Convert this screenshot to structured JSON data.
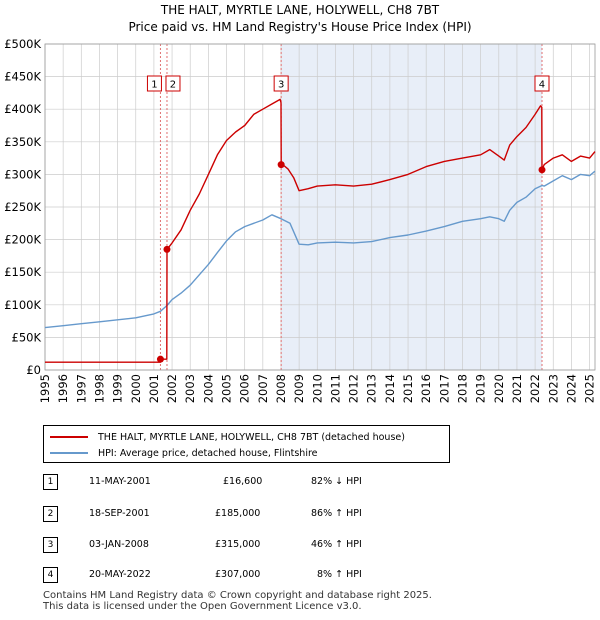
{
  "title": "THE HALT, MYRTLE LANE, HOLYWELL, CH8 7BT",
  "subtitle": "Price paid vs. HM Land Registry's House Price Index (HPI)",
  "colors": {
    "property": "#cc0000",
    "hpi": "#6699cc",
    "shade": "#e8eef8",
    "grid": "#cccccc",
    "vline": "#e07070"
  },
  "chart_data": {
    "type": "line",
    "title": "THE HALT, MYRTLE LANE, HOLYWELL, CH8 7BT",
    "subtitle": "Price paid vs. HM Land Registry's House Price Index (HPI)",
    "xlim": [
      1995,
      2025.3
    ],
    "ylim": [
      0,
      500000
    ],
    "x_ticks": [
      1995,
      1996,
      1997,
      1998,
      1999,
      2000,
      2001,
      2002,
      2003,
      2004,
      2005,
      2006,
      2007,
      2008,
      2009,
      2010,
      2011,
      2012,
      2013,
      2014,
      2015,
      2016,
      2017,
      2018,
      2019,
      2020,
      2021,
      2022,
      2023,
      2024,
      2025
    ],
    "y_ticks": [
      0,
      50000,
      100000,
      150000,
      200000,
      250000,
      300000,
      350000,
      400000,
      450000,
      500000
    ],
    "y_tick_labels": [
      "£0",
      "£50K",
      "£100K",
      "£150K",
      "£200K",
      "£250K",
      "£300K",
      "£350K",
      "£400K",
      "£450K",
      "£500K"
    ],
    "grid": true,
    "shaded_range": [
      2008.01,
      2022.38
    ],
    "series": [
      {
        "name": "THE HALT, MYRTLE LANE, HOLYWELL, CH8 7BT (detached house)",
        "x": [
          1995.0,
          2001.36,
          2001.37,
          2001.71,
          2001.72,
          2002.0,
          2002.5,
          2003.0,
          2003.5,
          2004.0,
          2004.5,
          2005.0,
          2005.5,
          2006.0,
          2006.5,
          2007.0,
          2007.5,
          2007.95,
          2008.0,
          2008.01,
          2008.1,
          2008.4,
          2008.7,
          2009.0,
          2009.5,
          2010.0,
          2011.0,
          2012.0,
          2013.0,
          2014.0,
          2015.0,
          2016.0,
          2017.0,
          2018.0,
          2019.0,
          2019.5,
          2020.0,
          2020.3,
          2020.6,
          2021.0,
          2021.5,
          2022.0,
          2022.3,
          2022.37,
          2022.38,
          2022.5,
          2023.0,
          2023.5,
          2024.0,
          2024.5,
          2025.0,
          2025.3
        ],
        "values": [
          12000,
          12000,
          16600,
          16600,
          185000,
          195000,
          215000,
          245000,
          270000,
          300000,
          330000,
          352000,
          365000,
          375000,
          392000,
          400000,
          408000,
          415000,
          410000,
          315000,
          315000,
          308000,
          295000,
          275000,
          278000,
          282000,
          284000,
          282000,
          285000,
          292000,
          300000,
          312000,
          320000,
          325000,
          330000,
          338000,
          328000,
          322000,
          345000,
          358000,
          372000,
          392000,
          405000,
          403000,
          307000,
          315000,
          325000,
          330000,
          320000,
          328000,
          325000,
          335000
        ]
      },
      {
        "name": "HPI: Average price, detached house, Flintshire",
        "x": [
          1995.0,
          1996.0,
          1997.0,
          1998.0,
          1999.0,
          2000.0,
          2001.0,
          2001.36,
          2001.72,
          2002.0,
          2002.5,
          2003.0,
          2003.5,
          2004.0,
          2004.5,
          2005.0,
          2005.5,
          2006.0,
          2006.5,
          2007.0,
          2007.5,
          2008.0,
          2008.5,
          2009.0,
          2009.5,
          2010.0,
          2011.0,
          2012.0,
          2013.0,
          2014.0,
          2015.0,
          2016.0,
          2017.0,
          2018.0,
          2019.0,
          2019.5,
          2020.0,
          2020.3,
          2020.6,
          2021.0,
          2021.5,
          2022.0,
          2022.38,
          2022.5,
          2023.0,
          2023.5,
          2024.0,
          2024.5,
          2025.0,
          2025.3
        ],
        "values": [
          65000,
          68000,
          71000,
          74000,
          77000,
          80000,
          86000,
          90000,
          99000,
          108000,
          118000,
          130000,
          146000,
          162000,
          180000,
          198000,
          212000,
          220000,
          225000,
          230000,
          238000,
          232000,
          225000,
          193000,
          192000,
          195000,
          196000,
          195000,
          197000,
          203000,
          207000,
          213000,
          220000,
          228000,
          232000,
          235000,
          232000,
          228000,
          245000,
          257000,
          265000,
          278000,
          283000,
          282000,
          290000,
          298000,
          292000,
          300000,
          298000,
          305000
        ]
      }
    ],
    "sales": [
      {
        "label": "1",
        "x": 2001.36,
        "price": 16600
      },
      {
        "label": "2",
        "x": 2001.72,
        "price": 185000
      },
      {
        "label": "3",
        "x": 2008.01,
        "price": 315000
      },
      {
        "label": "4",
        "x": 2022.38,
        "price": 307000
      }
    ]
  },
  "legend": {
    "property": "THE HALT, MYRTLE LANE, HOLYWELL, CH8 7BT (detached house)",
    "hpi": "HPI: Average price, detached house, Flintshire"
  },
  "sales_table": [
    {
      "num": "1",
      "date": "11-MAY-2001",
      "price": "£16,600",
      "hpi": "82% ↓ HPI"
    },
    {
      "num": "2",
      "date": "18-SEP-2001",
      "price": "£185,000",
      "hpi": "86% ↑ HPI"
    },
    {
      "num": "3",
      "date": "03-JAN-2008",
      "price": "£315,000",
      "hpi": "46% ↑ HPI"
    },
    {
      "num": "4",
      "date": "20-MAY-2022",
      "price": "£307,000",
      "hpi": "8% ↑ HPI"
    }
  ],
  "footer": {
    "line1": "Contains HM Land Registry data © Crown copyright and database right 2025.",
    "line2": "This data is licensed under the Open Government Licence v3.0."
  }
}
